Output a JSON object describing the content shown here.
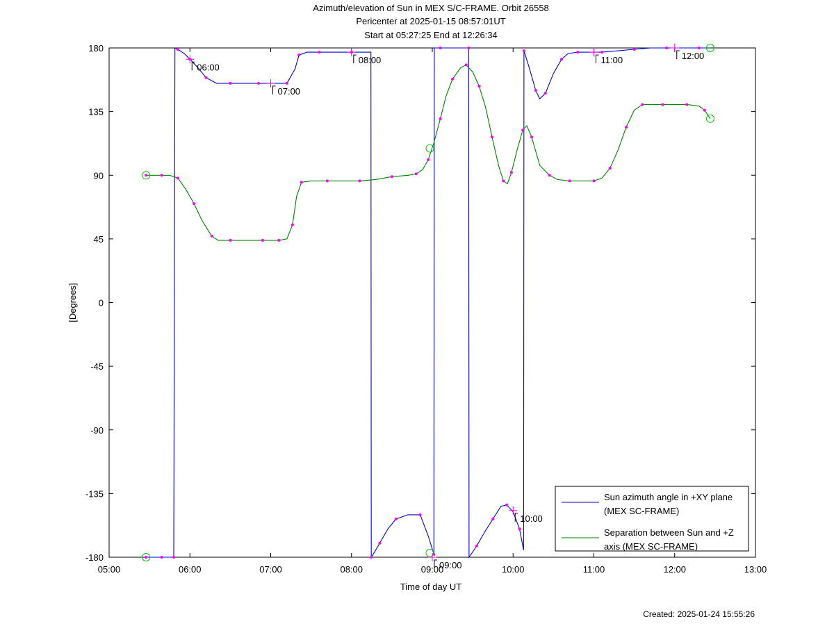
{
  "titles": [
    "Azimuth/elevation of Sun in MEX S/C-FRAME.  Orbit 26558",
    "Pericenter at 2025-01-15 08:57:01UT",
    "Start at 05:27:25 End at 12:26:34"
  ],
  "footer": "Created: 2025-01-24 15:55:26",
  "chart_data": {
    "type": "line",
    "xlabel": "Time of day UT",
    "ylabel": "[Degrees]",
    "xlim": [
      5.0,
      13.0
    ],
    "ylim": [
      -180,
      180
    ],
    "x_ticks": [
      {
        "value": 5,
        "label": "05:00"
      },
      {
        "value": 6,
        "label": "06:00"
      },
      {
        "value": 7,
        "label": "07:00"
      },
      {
        "value": 8,
        "label": "08:00"
      },
      {
        "value": 9,
        "label": "09:00"
      },
      {
        "value": 10,
        "label": "10:00"
      },
      {
        "value": 11,
        "label": "11:00"
      },
      {
        "value": 12,
        "label": "12:00"
      },
      {
        "value": 13,
        "label": "13:00"
      }
    ],
    "y_ticks": [
      {
        "value": 180,
        "label": "180"
      },
      {
        "value": 135,
        "label": "135"
      },
      {
        "value": 90,
        "label": "90"
      },
      {
        "value": 45,
        "label": "45"
      },
      {
        "value": 0,
        "label": "0"
      },
      {
        "value": -45,
        "label": "-45"
      },
      {
        "value": -90,
        "label": "-90"
      },
      {
        "value": -135,
        "label": "-135"
      },
      {
        "value": -180,
        "label": "-180"
      }
    ],
    "legend_position": "bottom-right",
    "series": [
      {
        "name": "Sun azimuth angle in +XY plane (MEX SC-FRAME)",
        "color": "#0000cc",
        "points": [
          [
            5.457,
            -180
          ],
          [
            5.55,
            -180
          ],
          [
            5.65,
            -180
          ],
          [
            5.75,
            -180
          ],
          [
            5.8,
            -180
          ],
          [
            5.815,
            180
          ],
          [
            5.85,
            179
          ],
          [
            5.93,
            176
          ],
          [
            6.0,
            172
          ],
          [
            6.1,
            166
          ],
          [
            6.2,
            159
          ],
          [
            6.33,
            155
          ],
          [
            6.5,
            155
          ],
          [
            6.7,
            155
          ],
          [
            6.85,
            155
          ],
          [
            7.0,
            155
          ],
          [
            7.2,
            155
          ],
          [
            7.3,
            165
          ],
          [
            7.35,
            175
          ],
          [
            7.45,
            177
          ],
          [
            7.6,
            177
          ],
          [
            7.8,
            177
          ],
          [
            8.0,
            177
          ],
          [
            8.24,
            177
          ],
          [
            8.245,
            -180
          ],
          [
            8.3,
            -175
          ],
          [
            8.35,
            -170
          ],
          [
            8.45,
            -160
          ],
          [
            8.55,
            -153
          ],
          [
            8.7,
            -150
          ],
          [
            8.85,
            -150
          ],
          [
            8.95,
            -165
          ],
          [
            9.02,
            -178
          ],
          [
            9.025,
            180
          ],
          [
            9.1,
            180
          ],
          [
            9.25,
            180
          ],
          [
            9.45,
            180
          ],
          [
            9.455,
            -180
          ],
          [
            9.55,
            -172
          ],
          [
            9.65,
            -162
          ],
          [
            9.75,
            -153
          ],
          [
            9.85,
            -144
          ],
          [
            9.92,
            -143
          ],
          [
            10.0,
            -148
          ],
          [
            10.08,
            -160
          ],
          [
            10.13,
            -175
          ],
          [
            10.135,
            178
          ],
          [
            10.2,
            166
          ],
          [
            10.28,
            150
          ],
          [
            10.33,
            144
          ],
          [
            10.4,
            148
          ],
          [
            10.5,
            162
          ],
          [
            10.6,
            172
          ],
          [
            10.68,
            176
          ],
          [
            10.8,
            177
          ],
          [
            10.95,
            177
          ],
          [
            11.1,
            177
          ],
          [
            11.3,
            178
          ],
          [
            11.5,
            179
          ],
          [
            11.7,
            180
          ],
          [
            11.9,
            180
          ],
          [
            12.1,
            180
          ],
          [
            12.3,
            180
          ],
          [
            12.44,
            180
          ]
        ]
      },
      {
        "name": "Separation between Sun and +Z axis (MEX SC-FRAME)",
        "color": "#008000",
        "points": [
          [
            5.457,
            90
          ],
          [
            5.55,
            90
          ],
          [
            5.65,
            90
          ],
          [
            5.75,
            90
          ],
          [
            5.85,
            88
          ],
          [
            5.95,
            80
          ],
          [
            6.05,
            70
          ],
          [
            6.15,
            58
          ],
          [
            6.27,
            47
          ],
          [
            6.35,
            44
          ],
          [
            6.5,
            44
          ],
          [
            6.7,
            44
          ],
          [
            6.9,
            44
          ],
          [
            7.0,
            44
          ],
          [
            7.1,
            44
          ],
          [
            7.2,
            45
          ],
          [
            7.27,
            55
          ],
          [
            7.32,
            75
          ],
          [
            7.38,
            85
          ],
          [
            7.5,
            86
          ],
          [
            7.7,
            86
          ],
          [
            7.9,
            86
          ],
          [
            8.1,
            86
          ],
          [
            8.3,
            87
          ],
          [
            8.5,
            89
          ],
          [
            8.7,
            90
          ],
          [
            8.8,
            91
          ],
          [
            8.88,
            94
          ],
          [
            8.95,
            101
          ],
          [
            9.02,
            113
          ],
          [
            9.1,
            130
          ],
          [
            9.17,
            146
          ],
          [
            9.25,
            158
          ],
          [
            9.35,
            166
          ],
          [
            9.42,
            168
          ],
          [
            9.5,
            163
          ],
          [
            9.58,
            153
          ],
          [
            9.66,
            138
          ],
          [
            9.74,
            117
          ],
          [
            9.82,
            97
          ],
          [
            9.88,
            86
          ],
          [
            9.93,
            84
          ],
          [
            9.98,
            92
          ],
          [
            10.05,
            108
          ],
          [
            10.12,
            122
          ],
          [
            10.17,
            125
          ],
          [
            10.23,
            117
          ],
          [
            10.33,
            97
          ],
          [
            10.45,
            90
          ],
          [
            10.55,
            87
          ],
          [
            10.7,
            86
          ],
          [
            10.9,
            86
          ],
          [
            11.0,
            86
          ],
          [
            11.1,
            88
          ],
          [
            11.2,
            95
          ],
          [
            11.3,
            108
          ],
          [
            11.4,
            124
          ],
          [
            11.5,
            136
          ],
          [
            11.6,
            140
          ],
          [
            11.7,
            140
          ],
          [
            11.85,
            140
          ],
          [
            12.0,
            140
          ],
          [
            12.15,
            140
          ],
          [
            12.3,
            139
          ],
          [
            12.37,
            136
          ],
          [
            12.44,
            130
          ]
        ]
      }
    ],
    "time_labels": [
      {
        "x": 6.0,
        "y": 172,
        "label": "06:00"
      },
      {
        "x": 7.0,
        "y": 155,
        "label": "07:00"
      },
      {
        "x": 8.0,
        "y": 177,
        "label": "08:00"
      },
      {
        "x": 9.0,
        "y": -180,
        "label": "09:00"
      },
      {
        "x": 10.0,
        "y": -147,
        "label": "10:00"
      },
      {
        "x": 11.0,
        "y": 177,
        "label": "11:00"
      },
      {
        "x": 12.0,
        "y": 180,
        "label": "12:00"
      }
    ],
    "circle_markers": [
      {
        "x": 5.457,
        "y": 90
      },
      {
        "x": 5.457,
        "y": -180
      },
      {
        "x": 8.97,
        "y": 109
      },
      {
        "x": 8.97,
        "y": -177
      },
      {
        "x": 12.44,
        "y": 130
      },
      {
        "x": 12.44,
        "y": 180
      }
    ],
    "dot_color": "#ff00ff",
    "circle_color": "#00cc00"
  }
}
